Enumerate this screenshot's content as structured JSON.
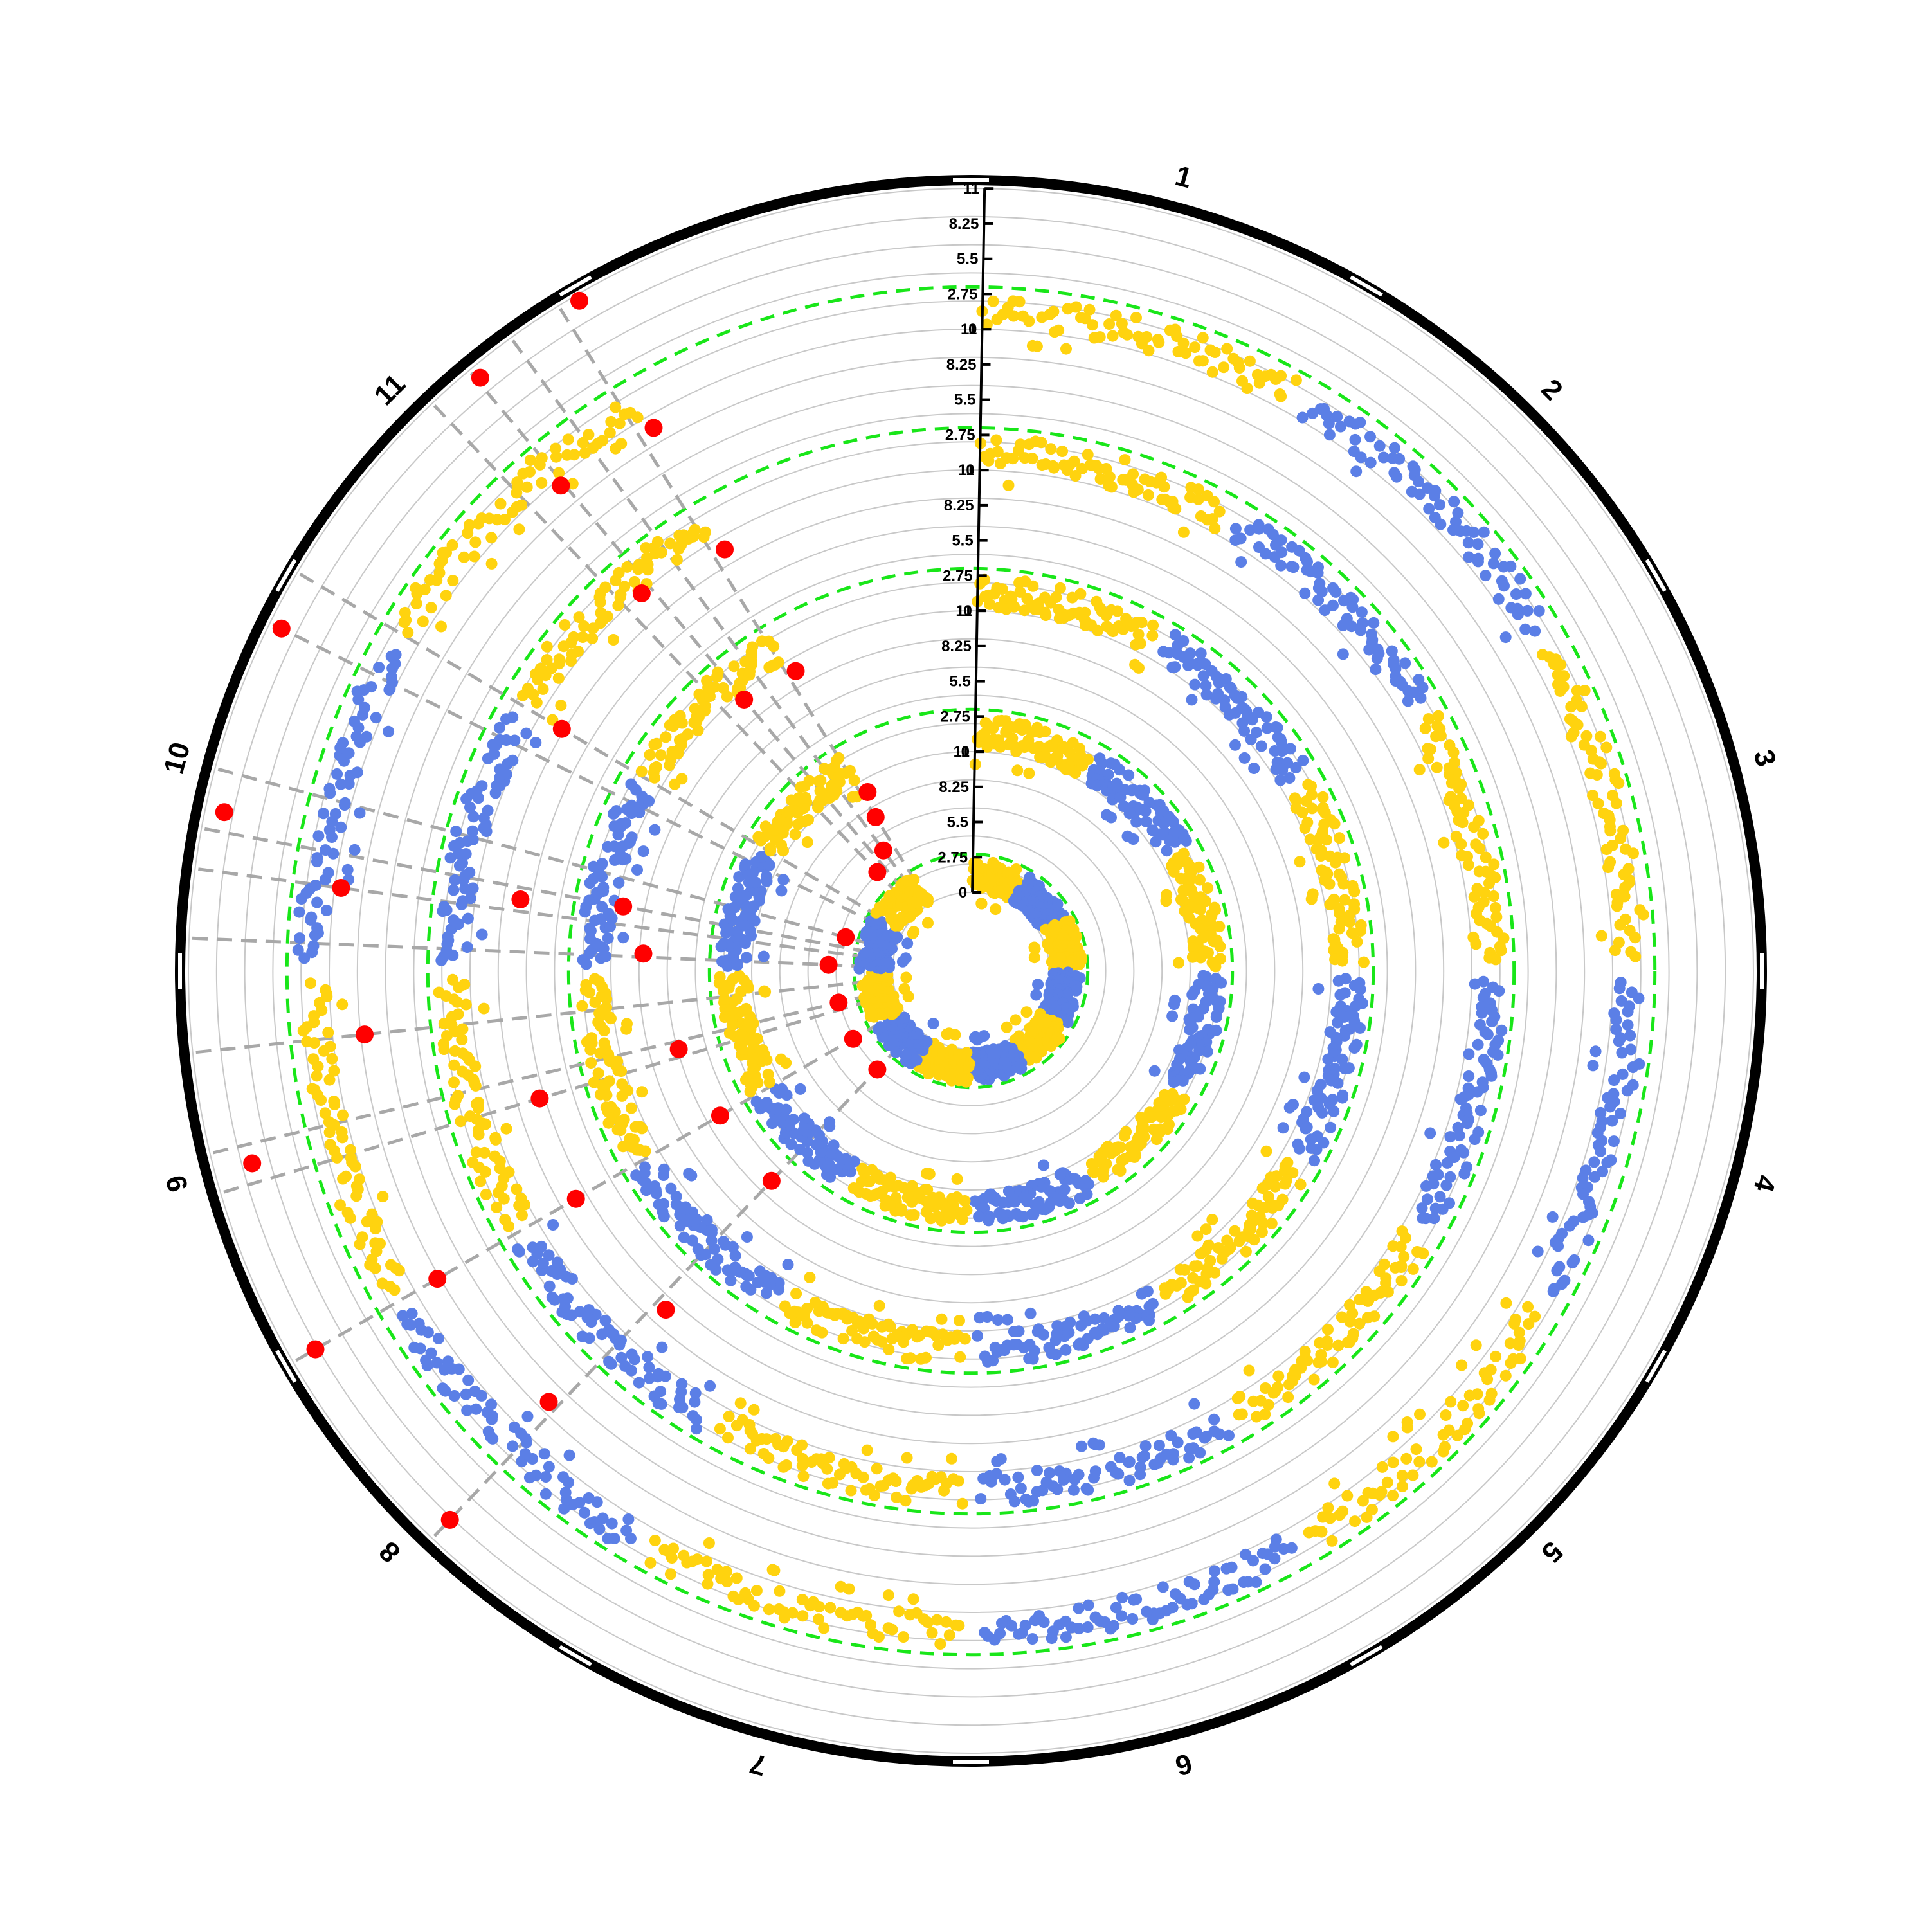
{
  "chart_data": {
    "type": "circular-manhattan",
    "chromosomes": [
      "1",
      "2",
      "3",
      "4",
      "5",
      "6",
      "7",
      "8",
      "9",
      "10",
      "11"
    ],
    "angular_axis": {
      "zero_at": "top",
      "direction": "clockwise",
      "chromosome_label_angles_deg": [
        15,
        45,
        75,
        105,
        135,
        165,
        195,
        225,
        255,
        285,
        315
      ]
    },
    "track_axis": {
      "tick_labels": [
        "0",
        "2.75",
        "5.5",
        "8.25",
        "11"
      ],
      "ylim": [
        0,
        11
      ],
      "radial_axis_angle_deg": 1
    },
    "tracks_inner_to_outer": [
      {
        "index": 1,
        "threshold": 3.0,
        "significant_hits": [
          {
            "chrom": "11",
            "pos": 0.94,
            "value": 8.0
          },
          {
            "chrom": "11",
            "pos": 0.8,
            "value": 5.5
          },
          {
            "chrom": "11",
            "pos": 0.55,
            "value": 4.5
          },
          {
            "chrom": "10",
            "pos": 0.5,
            "value": 4.0
          },
          {
            "chrom": "10",
            "pos": 0.08,
            "value": 5.0
          },
          {
            "chrom": "9",
            "pos": 0.55,
            "value": 4.5
          },
          {
            "chrom": "9",
            "pos": 0.0,
            "value": 4.5
          },
          {
            "chrom": "8",
            "pos": 0.45,
            "value": 4.5
          },
          {
            "chrom": "11",
            "pos": 0.999,
            "value": 10.0
          }
        ]
      },
      {
        "index": 2,
        "threshold": 3.3,
        "significant_hits": [
          {
            "chrom": "11",
            "pos": 0.67,
            "value": 10.5
          },
          {
            "chrom": "10",
            "pos": 0.35,
            "value": 10.5
          },
          {
            "chrom": "10",
            "pos": 0.1,
            "value": 8.5
          },
          {
            "chrom": "9",
            "pos": 0.5,
            "value": 6.5
          },
          {
            "chrom": "9",
            "pos": 0.0,
            "value": 5.5
          },
          {
            "chrom": "8",
            "pos": 0.45,
            "value": 5.5
          },
          {
            "chrom": "11",
            "pos": 0.99,
            "value": 10.0
          }
        ]
      },
      {
        "index": 3,
        "threshold": 3.3,
        "significant_hits": [
          {
            "chrom": "11",
            "pos": 0.63,
            "value": 11.0
          },
          {
            "chrom": "11",
            "pos": 0.02,
            "value": 9.0
          },
          {
            "chrom": "10",
            "pos": 0.3,
            "value": 7.5
          },
          {
            "chrom": "9",
            "pos": 0.45,
            "value": 7.0
          },
          {
            "chrom": "9",
            "pos": 0.0,
            "value": 7.5
          },
          {
            "chrom": "8",
            "pos": 0.4,
            "value": 7.5
          },
          {
            "chrom": "11",
            "pos": 0.99,
            "value": 10.0
          }
        ]
      },
      {
        "index": 4,
        "threshold": 3.3,
        "significant_hits": [
          {
            "chrom": "11",
            "pos": 0.66,
            "value": 10.5
          },
          {
            "chrom": "10",
            "pos": 0.25,
            "value": 10.5
          },
          {
            "chrom": "9",
            "pos": 0.8,
            "value": 8.5
          },
          {
            "chrom": "9",
            "pos": 0.0,
            "value": 9.0
          },
          {
            "chrom": "8",
            "pos": 0.48,
            "value": 8.0
          },
          {
            "chrom": "11",
            "pos": 0.99,
            "value": 10.0
          }
        ]
      },
      {
        "index": 5,
        "threshold": 3.3,
        "significant_hits": [
          {
            "chrom": "11",
            "pos": 0.68,
            "value": 10.0
          },
          {
            "chrom": "10",
            "pos": 0.88,
            "value": 10.0
          },
          {
            "chrom": "10",
            "pos": 0.4,
            "value": 9.5
          },
          {
            "chrom": "9",
            "pos": 0.5,
            "value": 8.0
          },
          {
            "chrom": "9",
            "pos": 0.0,
            "value": 9.0
          },
          {
            "chrom": "8",
            "pos": 0.45,
            "value": 9.0
          },
          {
            "chrom": "11",
            "pos": 0.99,
            "value": 10.5
          }
        ]
      }
    ],
    "series_colors": {
      "odd_chromosomes": "#FFD30F",
      "even_chromosomes": "#5B7FE6",
      "significant": "#FF0000",
      "threshold_line": "#19E619",
      "highlight_line": "#A8A8A8",
      "grid": "#C8C8C8",
      "outer_ring": "#000000"
    },
    "background_point_band": [
      0.2,
      2.6
    ],
    "grid": true,
    "legend": "none"
  }
}
